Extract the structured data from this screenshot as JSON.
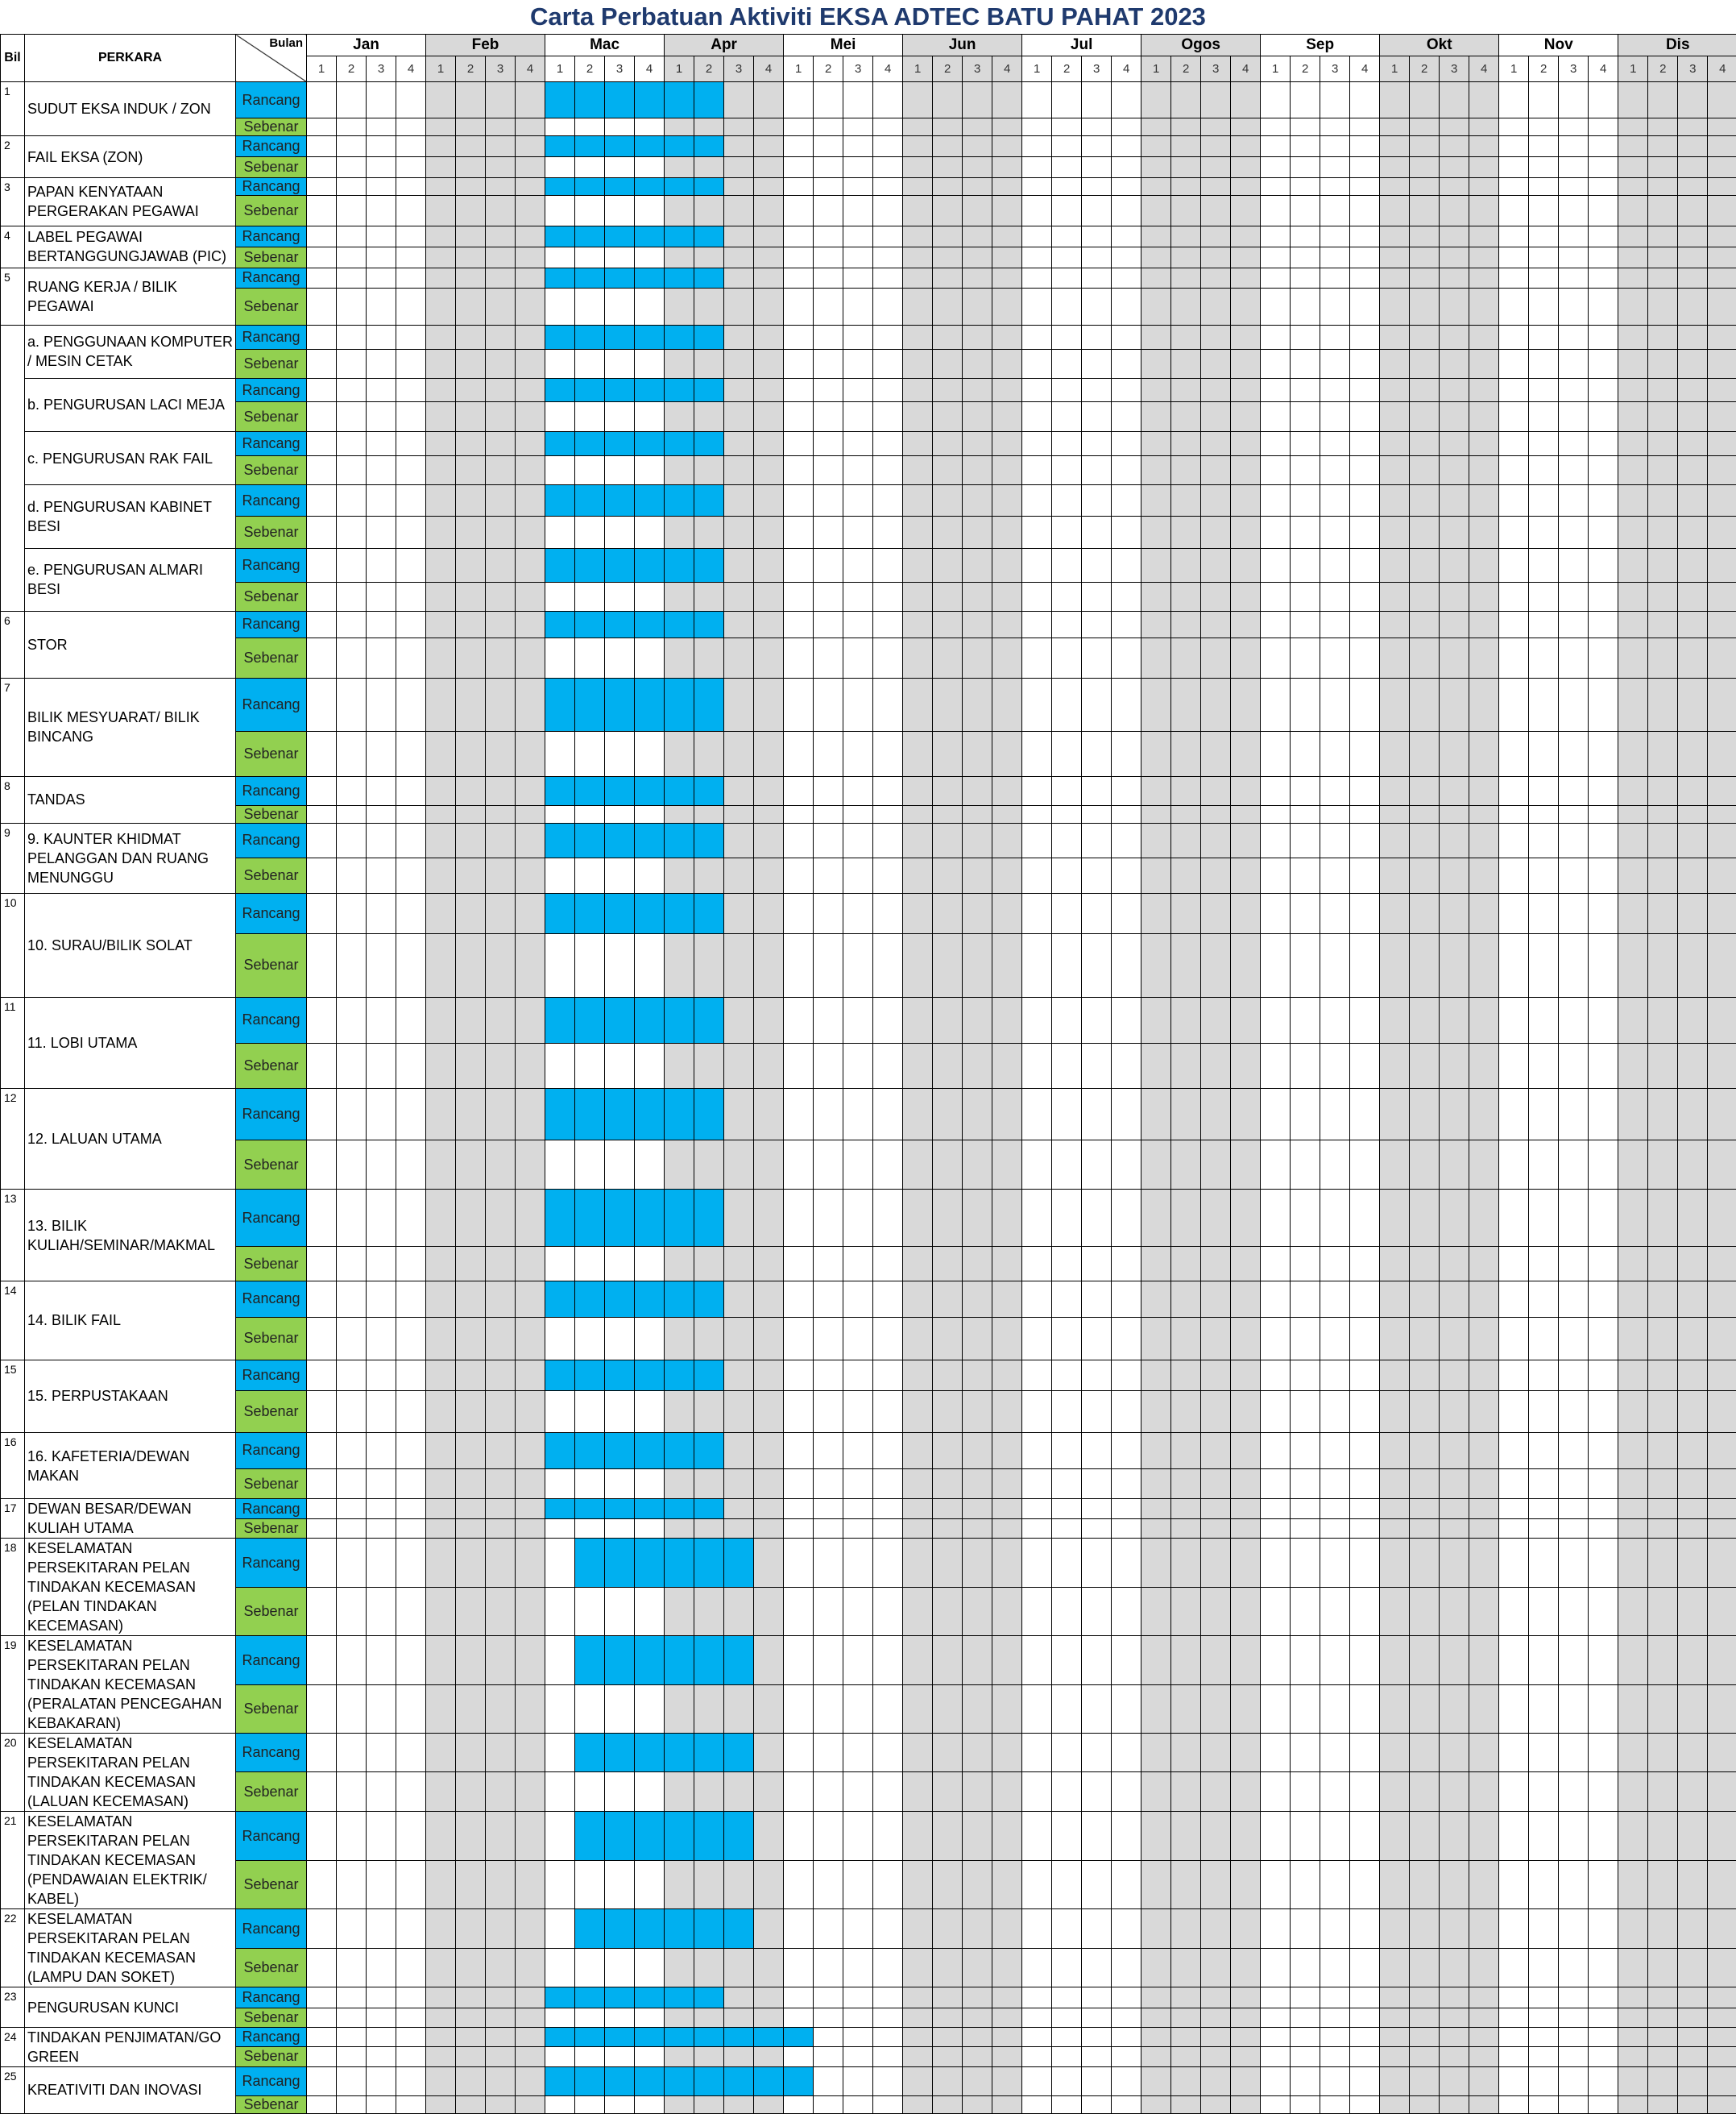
{
  "title": "Carta Perbatuan Aktiviti  EKSA ADTEC BATU PAHAT 2023",
  "header": {
    "bil": "Bil",
    "perkara": "PERKARA",
    "bulan": "Bulan",
    "weeks": [
      "1",
      "2",
      "3",
      "4"
    ]
  },
  "months": [
    "Jan",
    "Feb",
    "Mac",
    "Apr",
    "Mei",
    "Jun",
    "Jul",
    "Ogos",
    "Sep",
    "Okt",
    "Nov",
    "Dis"
  ],
  "labels": {
    "rancang": "Rancang",
    "sebenar": "Sebenar"
  },
  "colors": {
    "rancang": "#00b0f0",
    "sebenar": "#92d050",
    "alt_month": "#d9d9d9",
    "title": "#1f3a6e"
  },
  "rows": [
    {
      "bil": "1",
      "items": [
        {
          "text": "SUDUT EKSA INDUK / ZON",
          "rs": [
            1,
            6,
            11
          ]
        }
      ]
    },
    {
      "bil": "2",
      "items": [
        {
          "text": "FAIL EKSA (ZON)",
          "rs": [
            1,
            6,
            11
          ]
        }
      ]
    },
    {
      "bil": "3",
      "items": [
        {
          "text": "PAPAN KENYATAAN PERGERAKAN PEGAWAI",
          "rs": [
            1,
            6,
            11
          ]
        }
      ]
    },
    {
      "bil": "4",
      "items": [
        {
          "text": "LABEL PEGAWAI BERTANGGUNGJAWAB (PIC)",
          "rs": [
            1,
            6,
            11
          ]
        }
      ]
    },
    {
      "bil": "5",
      "items": [
        {
          "text": "RUANG KERJA / BILIK PEGAWAI",
          "rs": [
            1,
            6,
            11
          ]
        }
      ]
    },
    {
      "bil": "",
      "items": [
        {
          "text": "a. PENGGUNAAN KOMPUTER / MESIN CETAK",
          "rs": [
            1,
            6,
            11
          ]
        },
        {
          "text": "b. PENGURUSAN LACI MEJA",
          "rs": [
            1,
            6,
            11
          ]
        },
        {
          "text": "c. PENGURUSAN RAK FAIL",
          "rs": [
            1,
            6,
            11
          ]
        },
        {
          "text": "d. PENGURUSAN KABINET BESI",
          "rs": [
            1,
            6,
            11
          ]
        },
        {
          "text": "e. PENGURUSAN ALMARI BESI",
          "rs": [
            1,
            6,
            11
          ]
        }
      ]
    },
    {
      "bil": "6",
      "items": [
        {
          "text": "STOR",
          "rs": [
            1,
            6,
            11
          ]
        }
      ]
    },
    {
      "bil": "7",
      "items": [
        {
          "text": "BILIK MESYUARAT/ BILIK BINCANG",
          "rs": [
            1,
            6,
            11
          ]
        }
      ]
    },
    {
      "bil": "8",
      "items": [
        {
          "text": "TANDAS",
          "rs": [
            1,
            6,
            11
          ]
        }
      ]
    },
    {
      "bil": "9",
      "items": [
        {
          "text": "9. KAUNTER KHIDMAT PELANGGAN DAN RUANG MENUNGGU",
          "rs": [
            1,
            6,
            11
          ]
        }
      ]
    },
    {
      "bil": "10",
      "items": [
        {
          "text": "10. SURAU/BILIK SOLAT",
          "rs": [
            1,
            6,
            11
          ]
        }
      ]
    },
    {
      "bil": "11",
      "items": [
        {
          "text": "11. LOBI UTAMA",
          "rs": [
            1,
            6,
            11
          ]
        }
      ]
    },
    {
      "bil": "12",
      "items": [
        {
          "text": "12. LALUAN UTAMA",
          "rs": [
            1,
            6,
            11
          ]
        }
      ]
    },
    {
      "bil": "13",
      "items": [
        {
          "text": "13. BILIK KULIAH/SEMINAR/MAKMAL",
          "rs": [
            1,
            6,
            11
          ]
        }
      ]
    },
    {
      "bil": "14",
      "items": [
        {
          "text": "14. BILIK FAIL",
          "rs": [
            1,
            6,
            11
          ]
        }
      ]
    },
    {
      "bil": "15",
      "items": [
        {
          "text": "15. PERPUSTAKAAN",
          "rs": [
            1,
            6,
            11
          ]
        }
      ]
    },
    {
      "bil": "16",
      "items": [
        {
          "text": "16. KAFETERIA/DEWAN MAKAN",
          "rs": [
            1,
            6,
            11
          ]
        }
      ]
    },
    {
      "bil": "17",
      "items": [
        {
          "text": "DEWAN BESAR/DEWAN KULIAH UTAMA",
          "rs": [
            1,
            6,
            11
          ]
        }
      ]
    },
    {
      "bil": "18",
      "items": [
        {
          "text": "KESELAMATAN PERSEKITARAN PELAN TINDAKAN KECEMASAN (PELAN TINDAKAN KECEMASAN)",
          "rs": [
            2,
            7,
            12
          ]
        }
      ]
    },
    {
      "bil": "19",
      "items": [
        {
          "text": "KESELAMATAN PERSEKITARAN PELAN TINDAKAN KECEMASAN (PERALATAN PENCEGAHAN KEBAKARAN)",
          "rs": [
            2,
            7,
            12
          ]
        }
      ]
    },
    {
      "bil": "20",
      "items": [
        {
          "text": "KESELAMATAN PERSEKITARAN PELAN TINDAKAN KECEMASAN (LALUAN KECEMASAN)",
          "rs": [
            2,
            7,
            12
          ]
        }
      ]
    },
    {
      "bil": "21",
      "items": [
        {
          "text": "KESELAMATAN PERSEKITARAN PELAN TINDAKAN KECEMASAN (PENDAWAIAN ELEKTRIK/ KABEL)",
          "rs": [
            2,
            7,
            12
          ]
        }
      ]
    },
    {
      "bil": "22",
      "items": [
        {
          "text": "KESELAMATAN PERSEKITARAN PELAN TINDAKAN KECEMASAN (LAMPU DAN SOKET)",
          "rs": [
            2,
            7,
            12
          ]
        }
      ]
    },
    {
      "bil": "23",
      "items": [
        {
          "text": "PENGURUSAN KUNCI",
          "rs": [
            1,
            6,
            11
          ]
        }
      ]
    },
    {
      "bil": "24",
      "items": [
        {
          "text": "TINDAKAN PENJIMATAN/GO GREEN",
          "rs": [
            1,
            6,
            14
          ]
        }
      ]
    },
    {
      "bil": "25",
      "items": [
        {
          "text": "KREATIVITI DAN INOVASI",
          "rs": [
            1,
            6,
            14
          ]
        }
      ]
    }
  ]
}
